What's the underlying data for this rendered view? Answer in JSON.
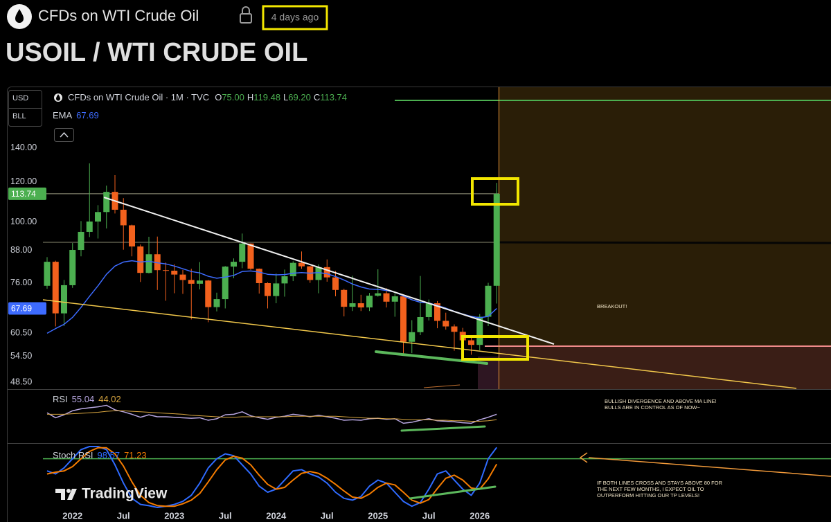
{
  "header": {
    "symbol": "CFDs on WTI Crude Oil",
    "time": "4 days ago",
    "title": "USOIL / WTI CRUDE OIL"
  },
  "chart_data": {
    "type": "candlestick",
    "legend_title": "CFDs on WTI Crude Oil · 1M · TVC",
    "ohlc_legend": [
      {
        "key": "O",
        "label": "75.00"
      },
      {
        "key": "H",
        "label": "119.48"
      },
      {
        "key": "L",
        "label": "69.20"
      },
      {
        "key": "C",
        "label": "113.74"
      }
    ],
    "currency": "USD",
    "unit": "BLL",
    "log_scale": true,
    "up_color": "#4caf50",
    "down_color": "#f2611d",
    "x": [
      "2021-10",
      "2021-11",
      "2021-12",
      "2022-01",
      "2022-02",
      "2022-03",
      "2022-04",
      "2022-05",
      "2022-06",
      "2022-07",
      "2022-08",
      "2022-09",
      "2022-10",
      "2022-11",
      "2022-12",
      "2023-01",
      "2023-02",
      "2023-03",
      "2023-04",
      "2023-05",
      "2023-06",
      "2023-07",
      "2023-08",
      "2023-09",
      "2023-10",
      "2023-11",
      "2023-12",
      "2024-01",
      "2024-02",
      "2024-03",
      "2024-04",
      "2024-05",
      "2024-06",
      "2024-07",
      "2024-08",
      "2024-09",
      "2024-10",
      "2024-11",
      "2024-12",
      "2025-01",
      "2025-02",
      "2025-03",
      "2025-04",
      "2025-05",
      "2025-06",
      "2025-07",
      "2025-08",
      "2025-09",
      "2025-10",
      "2025-11",
      "2025-12",
      "2026-01",
      "2026-02",
      "2026-03"
    ],
    "open": [
      75.0,
      83.6,
      66.2,
      75.2,
      88.2,
      95.7,
      100.3,
      104.7,
      114.7,
      105.8,
      98.6,
      89.6,
      79.5,
      86.5,
      80.5,
      80.3,
      78.9,
      77.0,
      75.7,
      76.8,
      68.1,
      70.6,
      81.8,
      83.6,
      90.8,
      81.0,
      75.9,
      71.6,
      75.8,
      78.3,
      83.2,
      81.9,
      77.0,
      81.6,
      77.9,
      73.6,
      68.2,
      69.3,
      68.0,
      71.7,
      72.5,
      69.8,
      71.5,
      58.2,
      60.8,
      65.1,
      69.3,
      64.0,
      62.4,
      60.9,
      58.6,
      57.4,
      65.2,
      75.0
    ],
    "high": [
      85.4,
      84.0,
      77.0,
      91.0,
      100.5,
      130.5,
      108.0,
      118.0,
      123.7,
      111.5,
      98.9,
      90.4,
      93.6,
      93.7,
      83.3,
      82.7,
      80.6,
      81.0,
      83.5,
      77.0,
      72.7,
      82.0,
      84.9,
      95.0,
      90.9,
      81.1,
      76.2,
      79.3,
      80.7,
      83.8,
      87.6,
      82.0,
      82.6,
      84.5,
      80.2,
      74.0,
      78.5,
      72.0,
      72.6,
      80.8,
      74.2,
      72.5,
      72.0,
      64.2,
      78.4,
      70.5,
      70.0,
      66.4,
      63.0,
      62.0,
      59.5,
      66.0,
      76.0,
      119.48
    ],
    "low": [
      74.0,
      62.4,
      62.5,
      74.3,
      85.7,
      93.5,
      92.9,
      97.2,
      104.0,
      88.3,
      85.7,
      76.3,
      79.3,
      73.6,
      70.1,
      72.5,
      72.3,
      64.4,
      73.8,
      63.6,
      66.8,
      67.7,
      77.6,
      81.2,
      80.6,
      72.4,
      67.7,
      69.3,
      71.4,
      76.6,
      81.0,
      76.0,
      72.5,
      76.4,
      71.5,
      65.3,
      66.9,
      66.9,
      66.9,
      71.4,
      68.0,
      65.2,
      55.1,
      55.3,
      60.0,
      64.1,
      61.9,
      61.5,
      55.9,
      57.2,
      54.9,
      56.0,
      62.5,
      69.2
    ],
    "close": [
      83.6,
      66.2,
      75.2,
      88.2,
      95.7,
      100.3,
      104.7,
      114.7,
      105.8,
      98.6,
      89.6,
      79.5,
      86.5,
      80.5,
      80.3,
      78.9,
      77.0,
      75.7,
      76.8,
      68.1,
      70.6,
      81.8,
      83.6,
      90.8,
      81.0,
      75.9,
      71.6,
      75.8,
      78.3,
      83.2,
      81.9,
      77.0,
      81.6,
      77.9,
      73.6,
      68.2,
      69.3,
      68.0,
      71.7,
      72.5,
      69.8,
      71.5,
      58.2,
      60.8,
      65.1,
      69.3,
      64.0,
      62.4,
      60.9,
      58.6,
      57.4,
      65.2,
      75.0,
      113.74
    ],
    "series": [
      {
        "name": "EMA",
        "color": "#3d6bff",
        "values": [
          60.5,
          61.8,
          63.0,
          65.0,
          68.0,
          71.5,
          75.0,
          79.0,
          82.0,
          83.5,
          84.0,
          83.5,
          83.8,
          83.2,
          82.8,
          82.0,
          81.0,
          80.0,
          79.5,
          78.3,
          77.6,
          78.0,
          78.6,
          80.0,
          80.2,
          79.8,
          79.0,
          78.8,
          78.9,
          79.4,
          79.6,
          79.4,
          79.6,
          79.2,
          78.2,
          77.0,
          75.6,
          74.6,
          73.9,
          73.8,
          73.4,
          72.9,
          71.6,
          70.4,
          69.6,
          69.4,
          68.6,
          67.8,
          66.8,
          66.0,
          65.3,
          64.9,
          65.3,
          67.69
        ]
      }
    ],
    "ylim": [
      47,
      183
    ],
    "yticks": [
      {
        "value": 140,
        "label": "140.00"
      },
      {
        "value": 120,
        "label": "120.00"
      },
      {
        "value": 100,
        "label": "100.00"
      },
      {
        "value": 88,
        "label": "88.00"
      },
      {
        "value": 76,
        "label": "76.00"
      },
      {
        "value": 60.5,
        "label": "60.50"
      },
      {
        "value": 54.5,
        "label": "54.50"
      },
      {
        "value": 48.5,
        "label": "48.50"
      }
    ],
    "xticks": [
      {
        "value": "2022-01",
        "label": "2022"
      },
      {
        "value": "2022-07",
        "label": "Jul"
      },
      {
        "value": "2023-01",
        "label": "2023"
      },
      {
        "value": "2023-07",
        "label": "Jul"
      },
      {
        "value": "2024-01",
        "label": "2024"
      },
      {
        "value": "2024-07",
        "label": "Jul"
      },
      {
        "value": "2025-01",
        "label": "2025"
      },
      {
        "value": "2025-07",
        "label": "Jul"
      },
      {
        "value": "2026-01",
        "label": "2026"
      }
    ],
    "rsi": {
      "name": "RSI",
      "ylim": [
        0,
        100
      ],
      "series": [
        {
          "color": "#b7a6e0",
          "values": [
            58,
            48,
            54,
            62,
            66,
            68,
            70,
            73,
            64,
            60,
            55,
            49,
            54,
            50,
            50,
            49,
            48,
            47,
            48,
            43,
            46,
            54,
            55,
            60,
            52,
            48,
            45,
            49,
            51,
            55,
            53,
            50,
            53,
            50,
            47,
            43,
            44,
            43,
            46,
            47,
            45,
            46,
            37,
            39,
            43,
            46,
            42,
            41,
            40,
            38,
            37,
            44,
            49,
            55.04
          ]
        },
        {
          "color": "#d9a640",
          "values": [
            55,
            55,
            55,
            56,
            57,
            58,
            59,
            61,
            62,
            62,
            61,
            60,
            59,
            58,
            57,
            56,
            55,
            53,
            52,
            51,
            50,
            49,
            49,
            50,
            50,
            50,
            50,
            50,
            50,
            51,
            51,
            51,
            51,
            51,
            51,
            50,
            49,
            48,
            47,
            47,
            46,
            46,
            45,
            44,
            44,
            44,
            43,
            43,
            42,
            42,
            41,
            41,
            42,
            44.02
          ]
        }
      ]
    },
    "stoch": {
      "name": "Stoch RSI",
      "ylim": [
        0,
        100
      ],
      "level": 80,
      "series": [
        {
          "color": "#2f6bff",
          "values": [
            60,
            55,
            65,
            80,
            95,
            100,
            100,
            95,
            70,
            40,
            15,
            5,
            3,
            0,
            2,
            5,
            10,
            20,
            40,
            65,
            80,
            88,
            85,
            70,
            55,
            35,
            25,
            30,
            45,
            60,
            62,
            55,
            50,
            40,
            25,
            15,
            12,
            18,
            35,
            45,
            40,
            25,
            10,
            2,
            8,
            30,
            55,
            60,
            45,
            30,
            20,
            40,
            80,
            98.57
          ]
        },
        {
          "color": "#f57c00",
          "values": [
            55,
            58,
            60,
            67,
            80,
            92,
            98,
            98,
            88,
            68,
            42,
            20,
            8,
            3,
            2,
            2,
            6,
            12,
            23,
            42,
            62,
            78,
            84,
            81,
            70,
            53,
            38,
            30,
            33,
            45,
            56,
            59,
            56,
            48,
            38,
            27,
            17,
            15,
            22,
            33,
            40,
            37,
            25,
            12,
            7,
            13,
            31,
            48,
            53,
            45,
            32,
            30,
            47,
            71.23
          ]
        }
      ]
    },
    "annotations": [
      "BREAKOUT!",
      "BULLISH DIVERGENCE AND ABOVE MA LINE!",
      "BULLS ARE IN CONTROL AS OF NOW~",
      "IF BOTH LINES CROSS AND STAYS ABOVE 80 FOR",
      "THE NEXT FEW MONTHS, I EXPECT OIL TO",
      "OUTPERFORM  HITTING OUR TP LEVELS!"
    ],
    "watermark": "TradingView"
  }
}
